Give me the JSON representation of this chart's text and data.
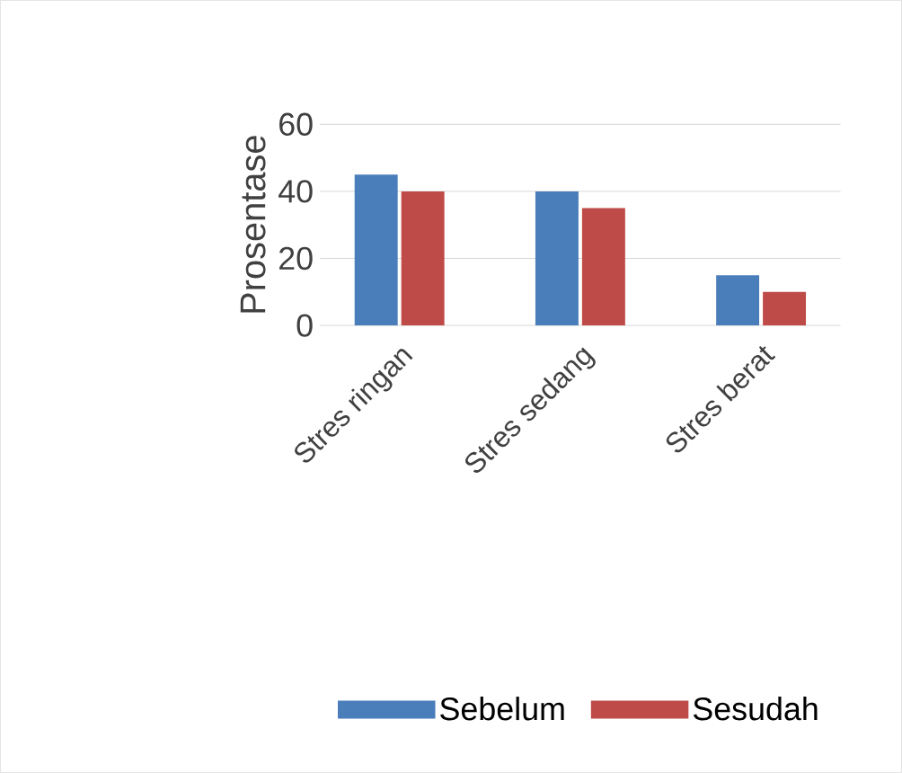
{
  "chart_data": {
    "type": "bar",
    "ylabel": "Prosentase",
    "categories": [
      "Stres ringan",
      "Stres sedang",
      "Stres berat"
    ],
    "series": [
      {
        "name": "Sebelum",
        "color": "#4a7ebb",
        "values": [
          45,
          40,
          15
        ]
      },
      {
        "name": "Sesudah",
        "color": "#be4b48",
        "values": [
          40,
          35,
          10
        ]
      }
    ],
    "ylim": [
      0,
      60
    ],
    "yticks": [
      0,
      20,
      40,
      60
    ],
    "grid": "y",
    "legend": "bottom"
  }
}
